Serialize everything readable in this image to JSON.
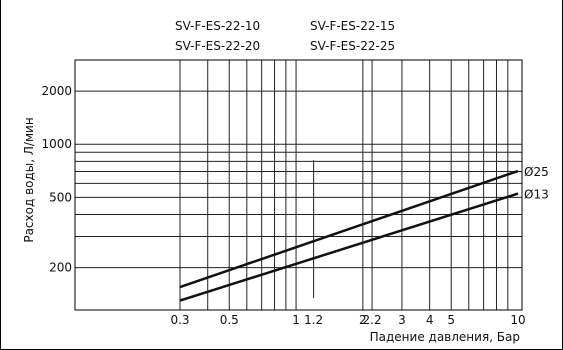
{
  "chart_data": {
    "type": "line",
    "legend": [
      "SV-F-ES-22-10",
      "SV-F-ES-22-15",
      "SV-F-ES-22-20",
      "SV-F-ES-22-25"
    ],
    "xlabel": "Падение давления, Бар",
    "ylabel": "Расход воды, Л/мин",
    "x_scale": "log",
    "y_scale": "log",
    "xlim": [
      0.3,
      10
    ],
    "ylim": [
      115,
      3000
    ],
    "x_ticks": [
      {
        "value": 0.3,
        "label": "0.3"
      },
      {
        "value": 0.5,
        "label": "0.5"
      },
      {
        "value": 1,
        "label": "1"
      },
      {
        "value": 1.2,
        "label": "1.2"
      },
      {
        "value": 2,
        "label": "2"
      },
      {
        "value": 2.2,
        "label": "2.2"
      },
      {
        "value": 3,
        "label": "3"
      },
      {
        "value": 4,
        "label": "4"
      },
      {
        "value": 5,
        "label": "5"
      },
      {
        "value": 10,
        "label": "10"
      }
    ],
    "x_gridlines": [
      0.3,
      0.4,
      0.5,
      0.6,
      0.7,
      0.8,
      0.9,
      1,
      2,
      2.2,
      3,
      4,
      5,
      6,
      7,
      8,
      9
    ],
    "x_short_line": 1.2,
    "y_ticks": [
      {
        "value": 200,
        "label": "200"
      },
      {
        "value": 500,
        "label": "500"
      },
      {
        "value": 1000,
        "label": "1000"
      },
      {
        "value": 2000,
        "label": "2000"
      }
    ],
    "y_gridlines": [
      200,
      300,
      400,
      500,
      600,
      700,
      800,
      900,
      1000,
      2000
    ],
    "series": [
      {
        "name": "Ø25",
        "x": [
          0.3,
          10
        ],
        "y": [
          155,
          705
        ]
      },
      {
        "name": "Ø13",
        "x": [
          0.3,
          10
        ],
        "y": [
          130,
          525
        ]
      }
    ],
    "grid": true
  }
}
